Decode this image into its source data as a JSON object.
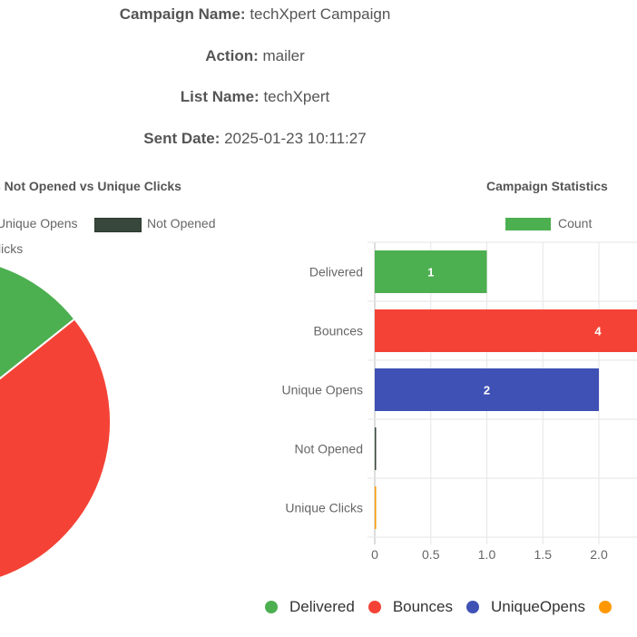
{
  "info": {
    "campaign_label": "Campaign Name:",
    "campaign_value": "techXpert Campaign",
    "action_label": "Action:",
    "action_value": "mailer",
    "list_label": "List Name:",
    "list_value": "techXpert",
    "sent_label": "Sent Date:",
    "sent_value": "2025-01-23 10:11:27"
  },
  "pie_chart": {
    "title": "s Not Opened vs Unique Clicks",
    "legend": [
      {
        "label": "Unique Opens"
      },
      {
        "label": "Not Opened",
        "color": "#37473b"
      },
      {
        "label": "licks"
      }
    ]
  },
  "bar_chart": {
    "title": "Campaign Statistics",
    "legend_label": "Count",
    "legend_color": "#4caf50"
  },
  "chart_data": [
    {
      "type": "pie",
      "title": "s Not Opened vs Unique Clicks",
      "labels": [
        "Delivered",
        "Bounces",
        "Unique Opens",
        "Not Opened",
        "Unique Clicks"
      ],
      "values": [
        1,
        4,
        2,
        0,
        0
      ],
      "colors": [
        "#4caf50",
        "#f44336",
        "#3f51b5",
        "#37473b",
        "#ff9800"
      ]
    },
    {
      "type": "bar",
      "orientation": "horizontal",
      "title": "Campaign Statistics",
      "categories": [
        "Delivered",
        "Bounces",
        "Unique Opens",
        "Not Opened",
        "Unique Clicks"
      ],
      "series": [
        {
          "name": "Count",
          "values": [
            1,
            4,
            2,
            0,
            0
          ]
        }
      ],
      "colors": [
        "#4caf50",
        "#f44336",
        "#3f51b5",
        "#37473b",
        "#ff9800"
      ],
      "data_labels": [
        "1",
        "4",
        "2",
        "",
        ""
      ],
      "x_ticks": [
        "0",
        "0.5",
        "1.0",
        "1.5",
        "2.0"
      ],
      "xlim": [
        0,
        4
      ],
      "grid": true,
      "legend": "top"
    }
  ],
  "bottom_legend": [
    {
      "label": "Delivered",
      "color": "#4caf50"
    },
    {
      "label": "Bounces",
      "color": "#f44336"
    },
    {
      "label": "UniqueOpens",
      "color": "#3f51b5"
    },
    {
      "label": "",
      "color": "#ff9800"
    }
  ]
}
